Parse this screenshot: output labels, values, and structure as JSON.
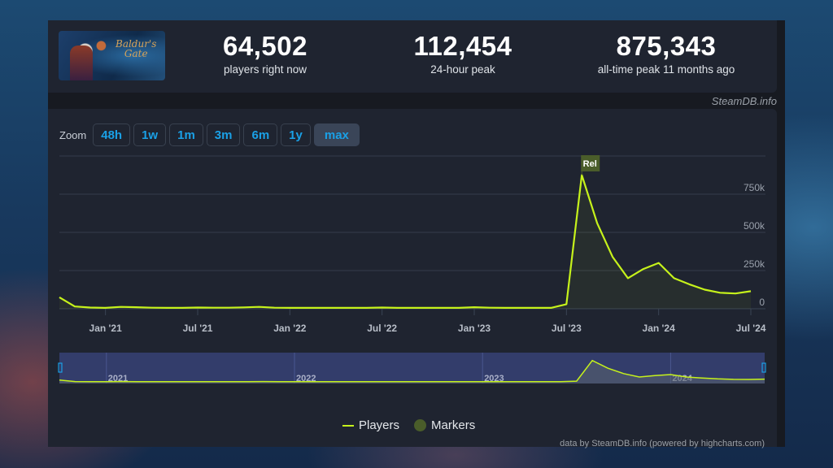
{
  "header": {
    "cover_alt": "Baldur's Gate 3",
    "cover_logo_line1": "Baldur's",
    "cover_logo_line2": "Gate",
    "stats": [
      {
        "value": "64,502",
        "label": "players right now"
      },
      {
        "value": "112,454",
        "label": "24-hour peak"
      },
      {
        "value": "875,343",
        "label": "all-time peak 11 months ago"
      }
    ],
    "brand": "SteamDB.info"
  },
  "zoom": {
    "label": "Zoom",
    "buttons": [
      "48h",
      "1w",
      "1m",
      "3m",
      "6m",
      "1y",
      "max"
    ],
    "active": "max"
  },
  "legend": {
    "players": "Players",
    "markers": "Markers"
  },
  "credit": "data by SteamDB.info (powered by highcharts.com)",
  "colors": {
    "line": "#c6f21b",
    "marker": "#4a5d2a",
    "navigator": "#333d6b",
    "zoom_button": "#1aa0e6"
  },
  "chart_data": {
    "type": "line",
    "title": "",
    "xlabel": "",
    "ylabel": "Players",
    "ylim": [
      0,
      1000000
    ],
    "y_ticks": [
      "0",
      "250k",
      "500k",
      "750k"
    ],
    "x_ticks": [
      "Jan '21",
      "Jul '21",
      "Jan '22",
      "Jul '22",
      "Jan '23",
      "Jul '23",
      "Jan '24",
      "Jul '24"
    ],
    "navigator_labels": [
      "2021",
      "2022",
      "2023",
      "2024"
    ],
    "grid": true,
    "legend_position": "bottom",
    "annotations": [
      {
        "label": "Rel",
        "x": "Aug 2023"
      }
    ],
    "series": [
      {
        "name": "Players",
        "x": [
          "Oct '20",
          "Nov '20",
          "Dec '20",
          "Jan '21",
          "Feb '21",
          "Mar '21",
          "Apr '21",
          "May '21",
          "Jun '21",
          "Jul '21",
          "Aug '21",
          "Sep '21",
          "Oct '21",
          "Nov '21",
          "Dec '21",
          "Jan '22",
          "Feb '22",
          "Mar '22",
          "Apr '22",
          "May '22",
          "Jun '22",
          "Jul '22",
          "Aug '22",
          "Sep '22",
          "Oct '22",
          "Nov '22",
          "Dec '22",
          "Jan '23",
          "Feb '23",
          "Mar '23",
          "Apr '23",
          "May '23",
          "Jun '23",
          "Jul '23",
          "Aug '23",
          "Sep '23",
          "Oct '23",
          "Nov '23",
          "Dec '23",
          "Jan '24",
          "Feb '24",
          "Mar '24",
          "Apr '24",
          "May '24",
          "Jun '24",
          "Jul '24"
        ],
        "values": [
          75000,
          15000,
          8000,
          6000,
          12000,
          10000,
          7000,
          6000,
          6000,
          8000,
          7000,
          7000,
          9000,
          12000,
          7000,
          6000,
          6000,
          6000,
          6000,
          6000,
          6000,
          8000,
          6000,
          6000,
          6000,
          6000,
          6000,
          10000,
          7000,
          6000,
          6000,
          6000,
          6000,
          30000,
          875343,
          560000,
          340000,
          200000,
          260000,
          300000,
          200000,
          160000,
          125000,
          105000,
          100000,
          115000
        ]
      }
    ]
  }
}
